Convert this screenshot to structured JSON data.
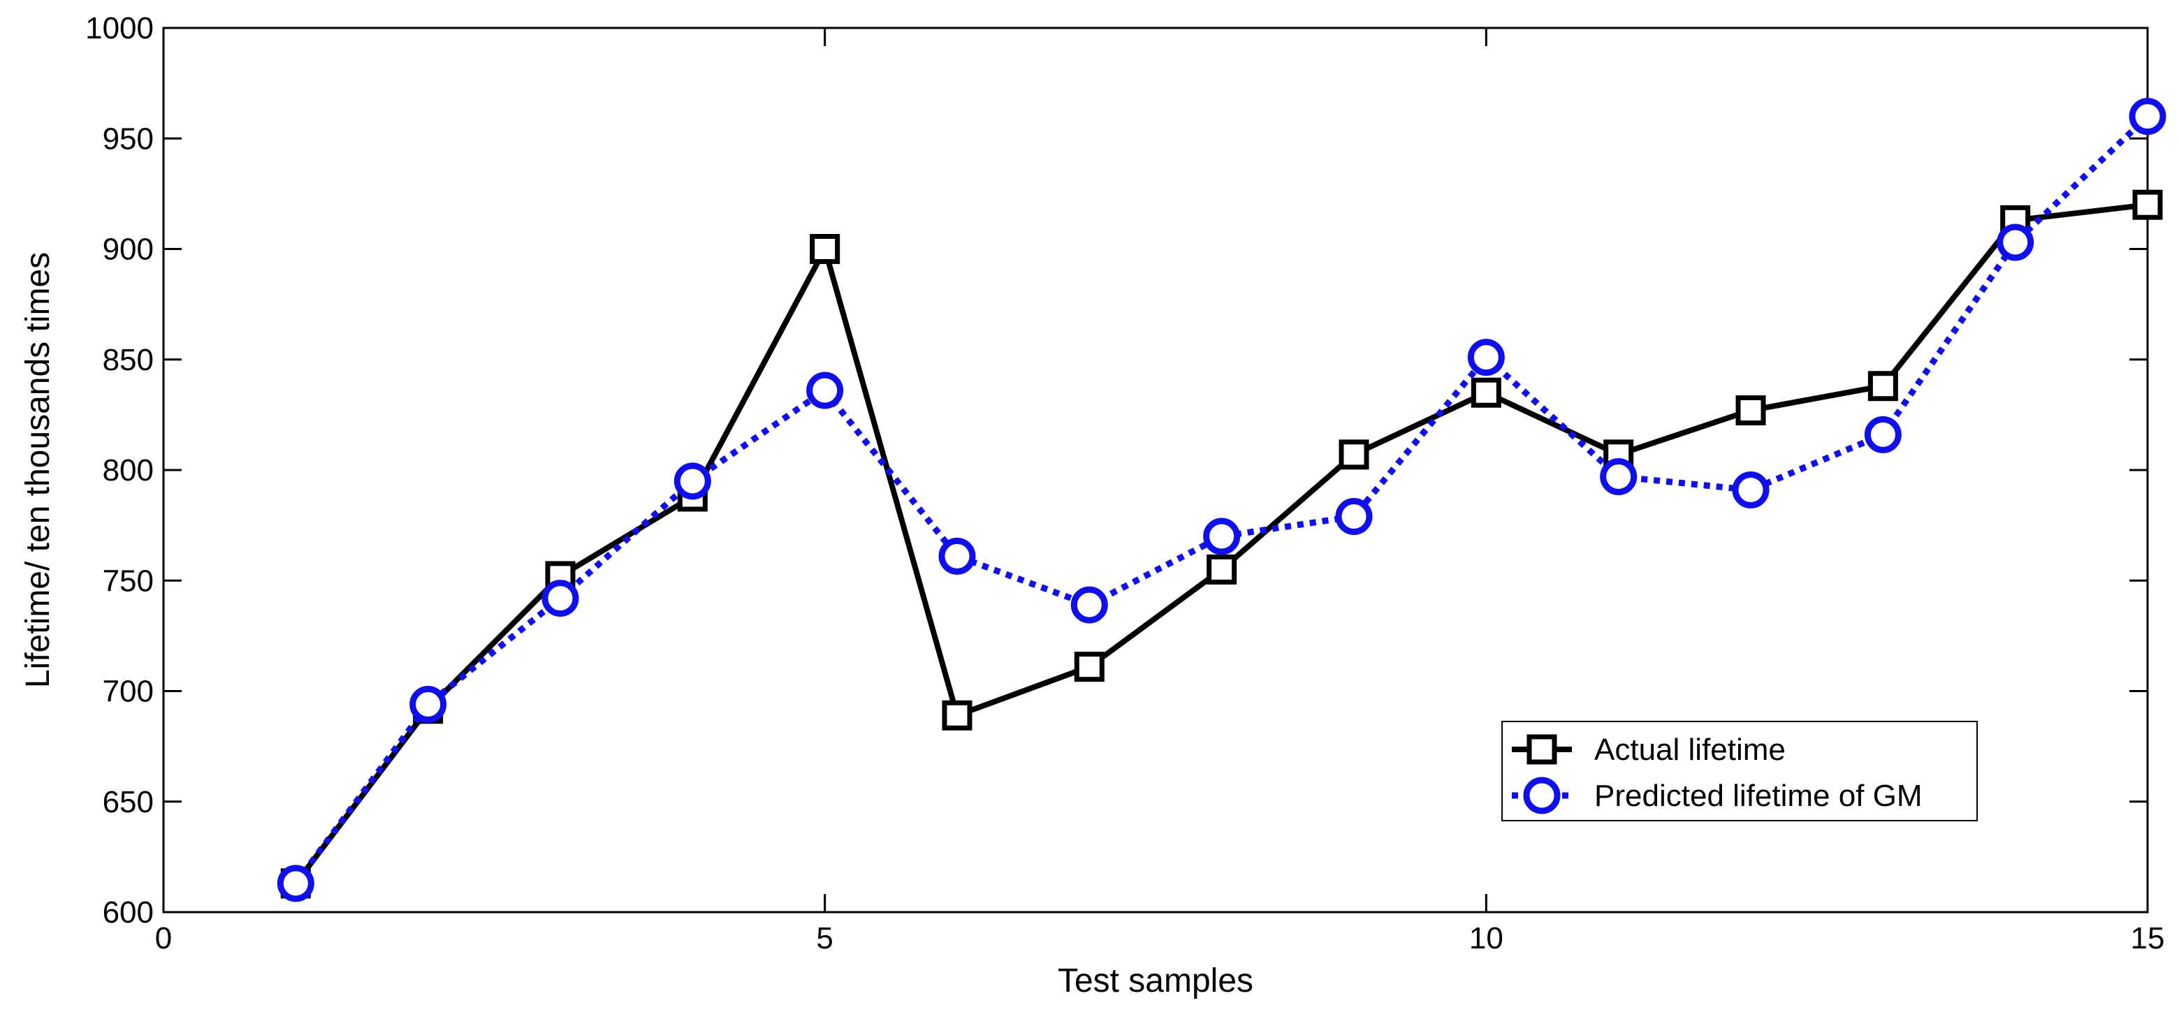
{
  "chart_data": {
    "type": "line",
    "title": "",
    "xlabel": "Test samples",
    "ylabel": "Lifetime/ ten thousands times",
    "xlim": [
      0,
      15
    ],
    "ylim": [
      600,
      1000
    ],
    "xticks": [
      0,
      5,
      10,
      15
    ],
    "yticks": [
      600,
      650,
      700,
      750,
      800,
      850,
      900,
      950,
      1000
    ],
    "grid": false,
    "legend_position": "lower-right",
    "x": [
      1,
      2,
      3,
      4,
      5,
      6,
      7,
      8,
      9,
      10,
      11,
      12,
      13,
      14,
      15
    ],
    "series": [
      {
        "name": "Actual lifetime",
        "color": "#000000",
        "line_style": "solid",
        "marker": "square",
        "values": [
          613,
          692,
          752,
          788,
          900,
          689,
          711,
          755,
          807,
          835,
          807,
          827,
          838,
          913,
          920
        ]
      },
      {
        "name": "Predicted lifetime of GM",
        "color": "#1010ee",
        "line_style": "dotted",
        "marker": "circle",
        "values": [
          613,
          694,
          742,
          795,
          836,
          761,
          739,
          770,
          779,
          851,
          797,
          791,
          816,
          903,
          960
        ]
      }
    ]
  }
}
